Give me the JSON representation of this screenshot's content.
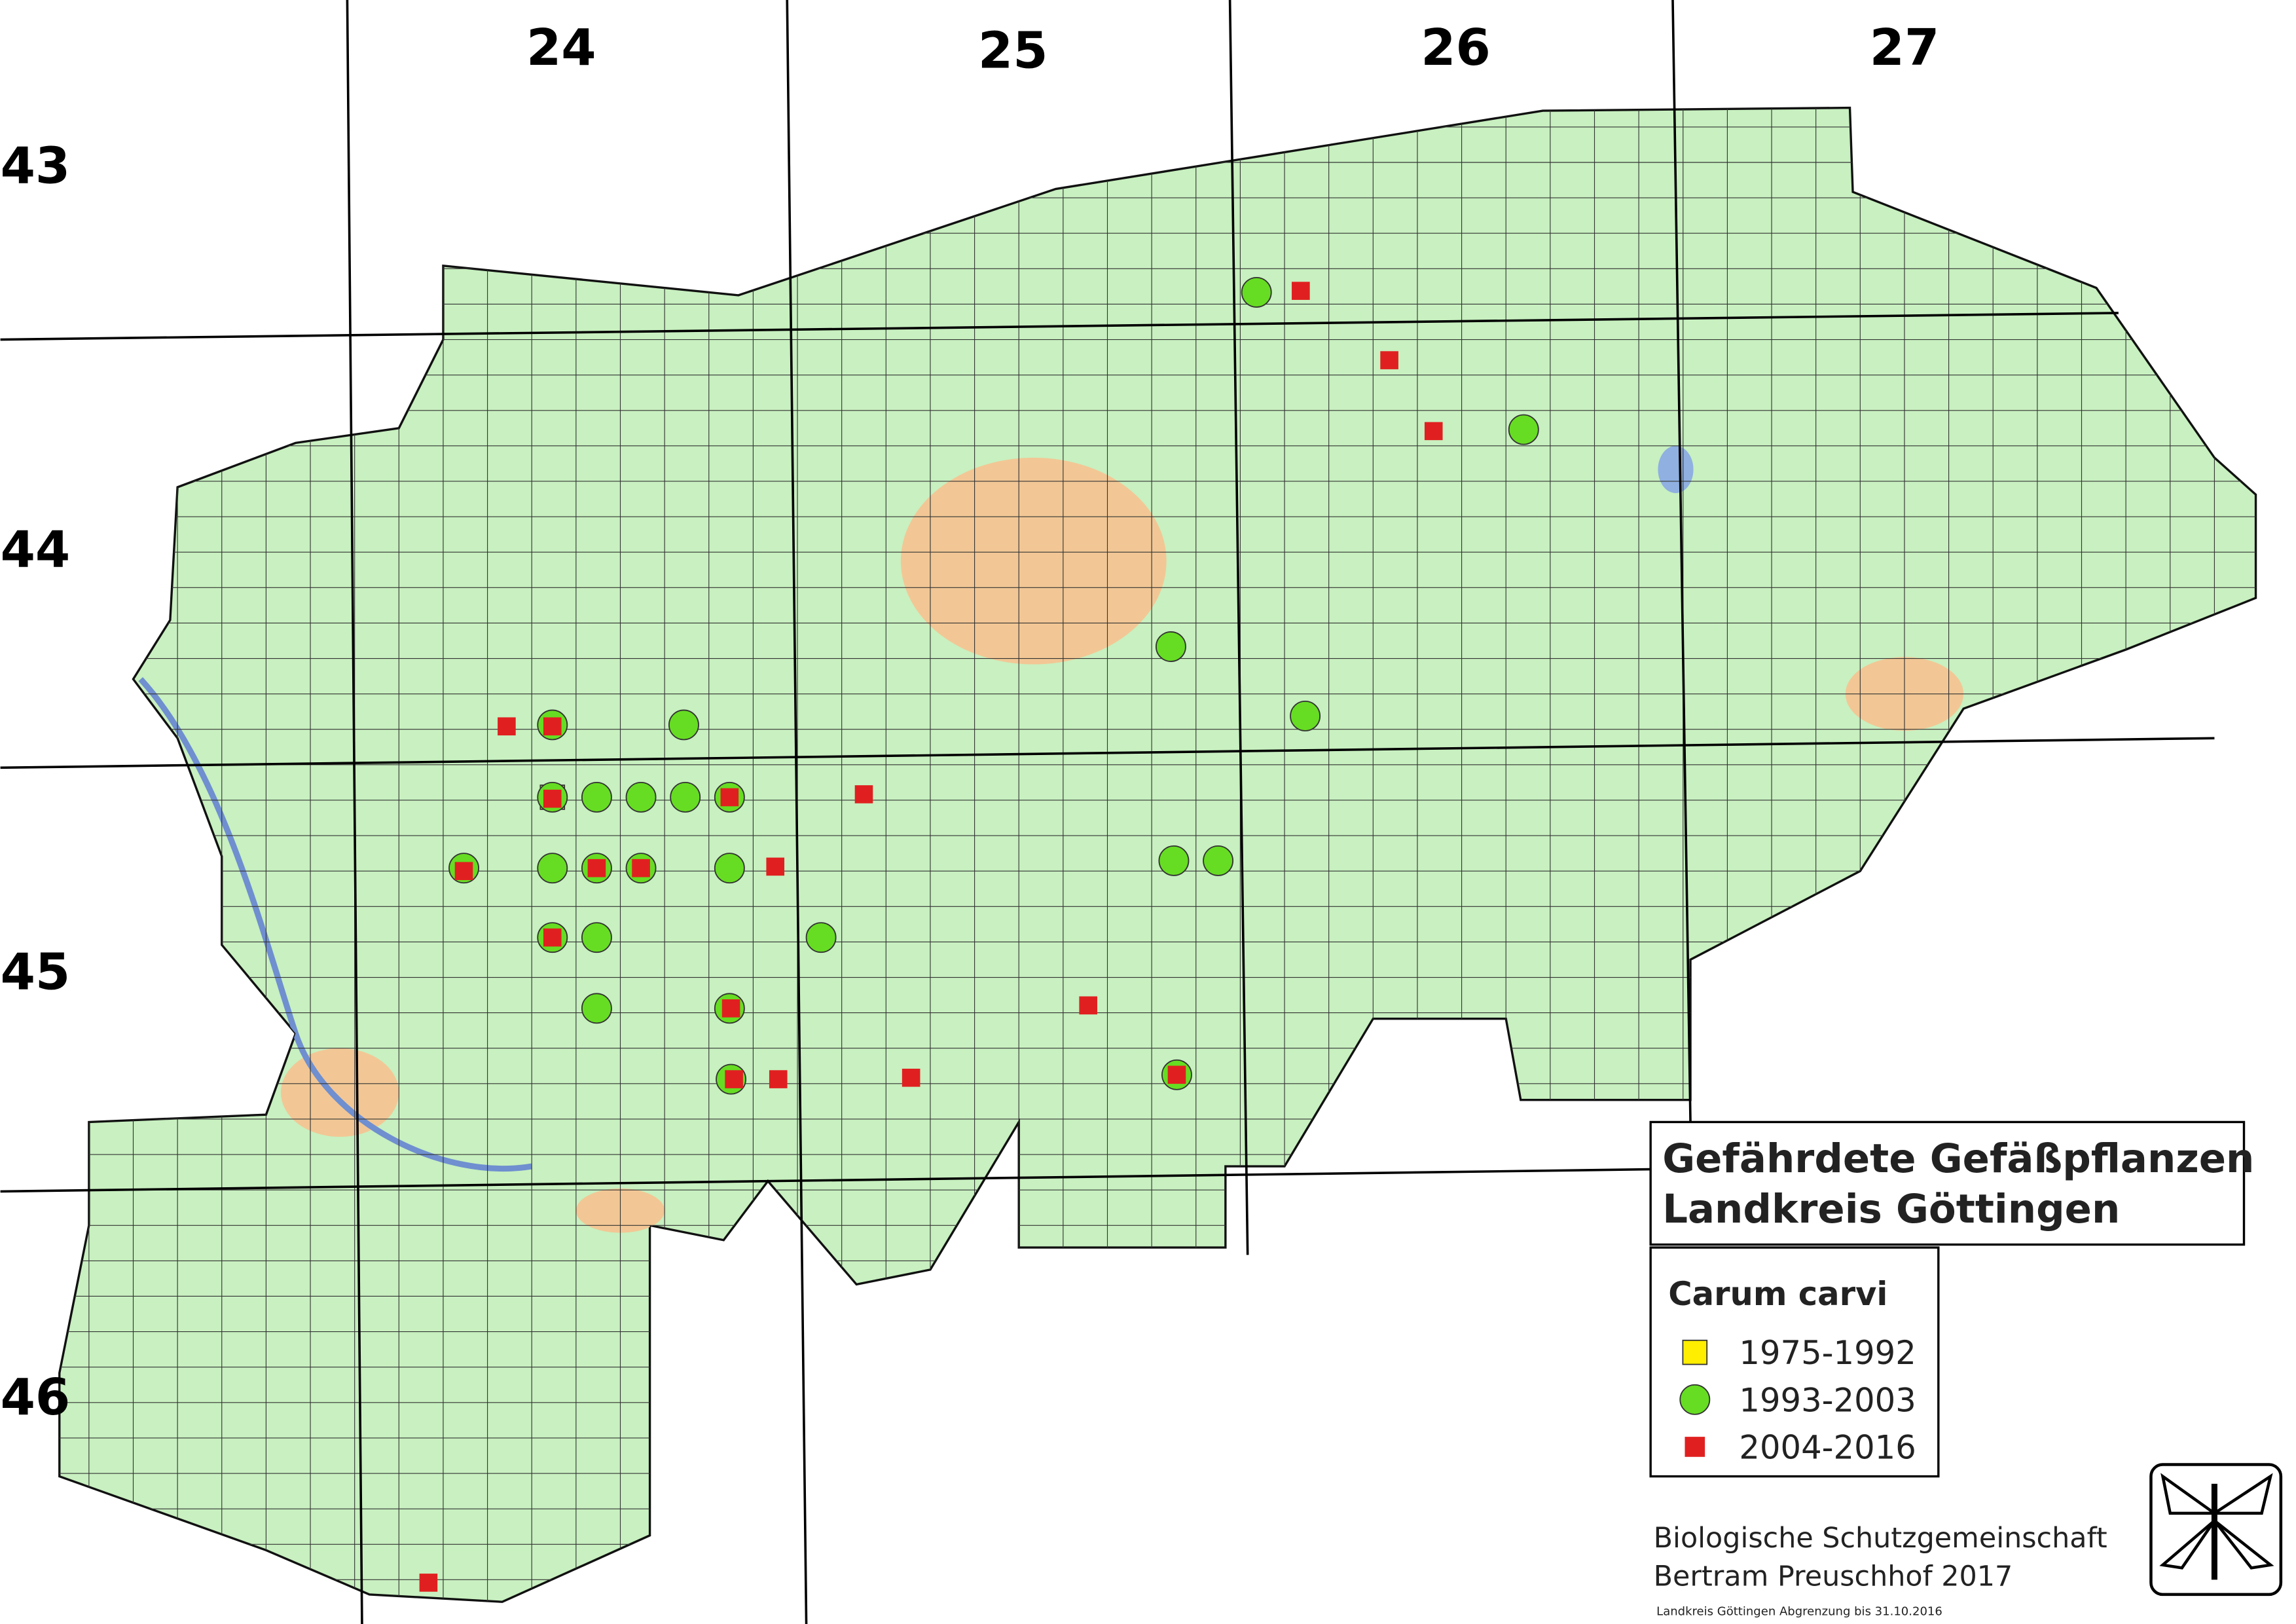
{
  "map": {
    "column_labels": [
      "24",
      "25",
      "26",
      "27"
    ],
    "row_labels": [
      "43",
      "44",
      "45",
      "46"
    ]
  },
  "title": {
    "line1": "Gefährdete Gefäßpflanzen",
    "line2": "Landkreis Göttingen"
  },
  "legend": {
    "species": "Carum carvi",
    "entries": [
      {
        "label": "1975-1992",
        "color": "#ffee00",
        "shape": "square"
      },
      {
        "label": "1993-2003",
        "color": "#66dd22",
        "shape": "circle"
      },
      {
        "label": "2004-2016",
        "color": "#e02020",
        "shape": "square"
      }
    ]
  },
  "credits": {
    "line1": "Biologische Schutzgemeinschaft",
    "line2": "Bertram Preuschhof 2017",
    "note": "Landkreis Göttingen Abgrenzung bis 31.10.2016"
  }
}
